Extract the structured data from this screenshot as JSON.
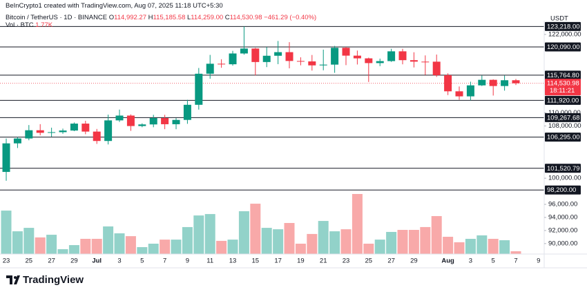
{
  "header": {
    "credit": "BeInCrypto1 created with TradingView.com, Aug 07, 2025 11:18 UTC+5:30"
  },
  "chart_data": {
    "type": "candlestick",
    "symbol": "Bitcoin / TetherUS · 1D · BINANCE",
    "ohlc_labels": [
      {
        "key": "O",
        "value": "114,992.27"
      },
      {
        "key": "H",
        "value": "115,185.58"
      },
      {
        "key": "L",
        "value": "114,259.00"
      },
      {
        "key": "C",
        "value": "114,530.98"
      }
    ],
    "change": "−461.29 (−0.40%)",
    "volume_label": "Vol · BTC",
    "volume_last_label": "1.77K",
    "currency": "USDT",
    "open": [
      100963,
      105333,
      106083,
      107340,
      106947,
      107047,
      107296,
      108356,
      107135,
      105698,
      108850,
      109585,
      107984,
      108230,
      109203,
      108262,
      108922,
      111234,
      115987,
      117516,
      117435,
      119086,
      119842,
      117777,
      118738,
      119289,
      117937,
      117876,
      117265,
      117381,
      119955,
      118755,
      118340,
      117614,
      117919,
      119415,
      118062,
      117837,
      117831,
      115764,
      113297,
      112527,
      114208,
      115055,
      114108,
      114992
    ],
    "high": [
      106074,
      106290,
      108135,
      108272,
      107735,
      107588,
      108528,
      108789,
      107540,
      109730,
      110500,
      109765,
      108400,
      109700,
      109700,
      109200,
      111999,
      116868,
      118869,
      118200,
      119488,
      123218,
      119940,
      120063,
      120998,
      120820,
      118499,
      118856,
      119676,
      120247,
      120090,
      119535,
      118451,
      118300,
      119800,
      119800,
      119273,
      118792,
      118922,
      116052,
      114036,
      114766,
      115720,
      115127,
      115720,
      115185
    ],
    "low": [
      99613,
      104622,
      105808,
      106562,
      106356,
      106800,
      107201,
      106733,
      105250,
      105167,
      108600,
      107245,
      107800,
      107800,
      107500,
      107500,
      108324,
      110500,
      115222,
      116900,
      117224,
      118905,
      115736,
      117000,
      117453,
      116812,
      117276,
      116467,
      116515,
      116128,
      117301,
      117401,
      114723,
      117150,
      117800,
      117427,
      116950,
      115796,
      115500,
      112722,
      112000,
      111920,
      114107,
      112650,
      113400,
      114259
    ],
    "close": [
      105333,
      106083,
      107340,
      106947,
      107047,
      107296,
      108356,
      107135,
      105698,
      108850,
      109585,
      107984,
      108230,
      109203,
      108262,
      108922,
      111234,
      115987,
      117516,
      117435,
      119086,
      119842,
      117777,
      118738,
      119289,
      117937,
      117876,
      117265,
      117381,
      119955,
      118755,
      118340,
      117614,
      117919,
      119415,
      118062,
      117837,
      117831,
      115764,
      113297,
      112527,
      114208,
      115055,
      114108,
      114992,
      114530.98
    ],
    "volume": [
      27.7,
      14.5,
      16.7,
      10.6,
      12.3,
      3.1,
      5.7,
      9.7,
      9.7,
      17.6,
      13.2,
      11.4,
      4.4,
      6.6,
      9.2,
      9.2,
      17.2,
      24.6,
      25.5,
      8.4,
      9.2,
      27.3,
      32.1,
      16.7,
      15.8,
      19.8,
      6.6,
      12.8,
      21.1,
      14.5,
      15.8,
      38.3,
      6.6,
      9.2,
      14.1,
      15.4,
      15.4,
      17.2,
      24.2,
      11,
      7.5,
      9.7,
      11.9,
      9.7,
      8.8,
      1.77
    ],
    "up_color": "#089981",
    "down_color": "#f23645",
    "volume_up_color": "#92d2c9",
    "volume_down_color": "#f8a9a9",
    "xlim": [
      -0.55,
      47.5
    ],
    "xticks": [
      {
        "value": 0,
        "label": "23"
      },
      {
        "value": 2,
        "label": "25"
      },
      {
        "value": 4,
        "label": "27"
      },
      {
        "value": 6,
        "label": "29"
      },
      {
        "value": 8,
        "label": "Jul"
      },
      {
        "value": 10,
        "label": "3"
      },
      {
        "value": 12,
        "label": "5"
      },
      {
        "value": 14,
        "label": "7"
      },
      {
        "value": 16,
        "label": "9"
      },
      {
        "value": 18,
        "label": "11"
      },
      {
        "value": 20,
        "label": "13"
      },
      {
        "value": 22,
        "label": "15"
      },
      {
        "value": 24,
        "label": "17"
      },
      {
        "value": 26,
        "label": "19"
      },
      {
        "value": 28,
        "label": "21"
      },
      {
        "value": 30,
        "label": "23"
      },
      {
        "value": 32,
        "label": "25"
      },
      {
        "value": 34,
        "label": "27"
      },
      {
        "value": 36,
        "label": "29"
      },
      {
        "value": 39,
        "label": "Aug"
      },
      {
        "value": 41,
        "label": "3"
      },
      {
        "value": 43,
        "label": "5"
      },
      {
        "value": 45,
        "label": "7"
      },
      {
        "value": 47,
        "label": "9"
      }
    ],
    "ylim": [
      88400,
      124100
    ],
    "yticks": [
      {
        "value": 122000,
        "label": "122,000.00"
      },
      {
        "value": 110000,
        "label": "110,000.00"
      },
      {
        "value": 108000,
        "label": "108,000.00"
      },
      {
        "value": 100000,
        "label": "100,000.00"
      },
      {
        "value": 96000,
        "label": "96,000.00"
      },
      {
        "value": 94000,
        "label": "94,000.00"
      },
      {
        "value": 92000,
        "label": "92,000.00"
      },
      {
        "value": 90000,
        "label": "90,000.00"
      }
    ],
    "levels": [
      {
        "value": 123218,
        "label": "123,218.00"
      },
      {
        "value": 120090,
        "label": "120,090.00"
      },
      {
        "value": 115764.8,
        "label": "115,764.80"
      },
      {
        "value": 111920,
        "label": "111,920.00"
      },
      {
        "value": 109267.68,
        "label": "109,267.68"
      },
      {
        "value": 106295,
        "label": "106,295.00"
      },
      {
        "value": 101520.79,
        "label": "101,520.79"
      },
      {
        "value": 98200,
        "label": "98,200.00"
      }
    ],
    "last_price": {
      "value": 114530.98,
      "label": "114,530.98"
    },
    "countdown": "18:11:21"
  },
  "footer": {
    "brand": "TradingView"
  }
}
